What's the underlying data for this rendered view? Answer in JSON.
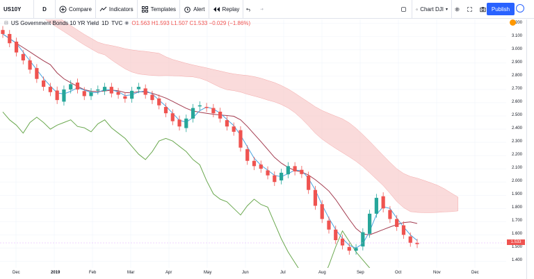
{
  "toolbar": {
    "symbol": "US10Y",
    "interval": "D",
    "compare": "Compare",
    "indicators": "Indicators",
    "templates": "Templates",
    "alert": "Alert",
    "replay": "Replay",
    "layout_name": "Chart DJI",
    "publish": "Publish"
  },
  "legend": {
    "title": "US Government Bonds 10 YR Yield",
    "interval": "1D",
    "exchange": "TVC",
    "ohlc": "O1.563 H1.593 L1.507 C1.533 −0.029 (−1.86%)"
  },
  "price_axis": {
    "labels": [
      "3.200",
      "3.100",
      "3.000",
      "2.900",
      "2.800",
      "2.700",
      "2.600",
      "2.500",
      "2.400",
      "2.300",
      "2.200",
      "2.100",
      "2.000",
      "1.900",
      "1.800",
      "1.700",
      "1.600",
      "1.500",
      "1.400"
    ],
    "last_price": "1.533"
  },
  "time_axis": {
    "labels": [
      "Dec",
      "2019",
      "Feb",
      "Mar",
      "Apr",
      "May",
      "Jun",
      "Jul",
      "Aug",
      "Sep",
      "Oct",
      "Nov",
      "Dec"
    ]
  },
  "chart_data": {
    "type": "candlestick",
    "title": "US Government Bonds 10 YR Yield",
    "ylim": [
      1.35,
      3.23
    ],
    "indicator": "Ichimoku Cloud",
    "close_approx": [
      3.12,
      3.05,
      2.98,
      2.92,
      2.85,
      2.78,
      2.72,
      2.68,
      2.62,
      2.7,
      2.74,
      2.7,
      2.65,
      2.68,
      2.7,
      2.72,
      2.67,
      2.66,
      2.63,
      2.69,
      2.72,
      2.66,
      2.62,
      2.58,
      2.52,
      2.46,
      2.42,
      2.48,
      2.56,
      2.58,
      2.56,
      2.52,
      2.48,
      2.42,
      2.38,
      2.26,
      2.16,
      2.12,
      2.1,
      2.05,
      2.0,
      2.07,
      2.12,
      2.08,
      2.06,
      1.94,
      1.82,
      1.72,
      1.64,
      1.56,
      1.52,
      1.48,
      1.5,
      1.62,
      1.76,
      1.88,
      1.8,
      1.72,
      1.66,
      1.6,
      1.54,
      1.53
    ]
  }
}
